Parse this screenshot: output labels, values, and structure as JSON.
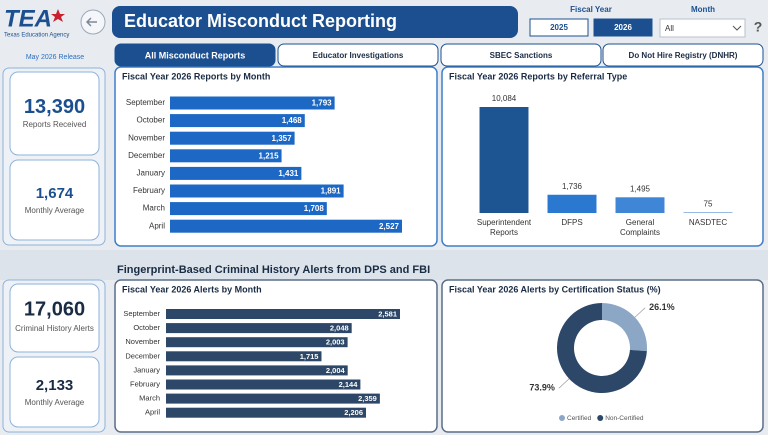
{
  "header": {
    "logo": "TEA",
    "agency": "Texas Education Agency",
    "title": "Educator Misconduct Reporting",
    "fiscal_year_label": "Fiscal Year",
    "fiscal_years": [
      "2025",
      "2026"
    ],
    "selected_year_index": 1,
    "month_label": "Month",
    "month_value": "All",
    "help": "?"
  },
  "release": "May 2026 Release",
  "tabs": [
    "All Misconduct Reports",
    "Educator Investigations",
    "SBEC Sanctions",
    "Do Not Hire Registry (DNHR)"
  ],
  "active_tab": 0,
  "kpis": [
    {
      "value": "13,390",
      "label": "Reports Received"
    },
    {
      "value": "1,674",
      "label": "Monthly Average"
    },
    {
      "value": "17,060",
      "label": "Criminal History Alerts"
    },
    {
      "value": "2,133",
      "label": "Monthly Average"
    }
  ],
  "section_title": "Fingerprint-Based Criminal History Alerts from DPS and FBI",
  "chart_data": [
    {
      "type": "hbar",
      "title": "Fiscal Year 2026 Reports by Month",
      "categories": [
        "September",
        "October",
        "November",
        "December",
        "January",
        "February",
        "March",
        "April"
      ],
      "values": [
        1793,
        1468,
        1357,
        1215,
        1431,
        1891,
        1708,
        2527
      ],
      "value_labels": [
        "1,793",
        "1,468",
        "1,357",
        "1,215",
        "1,431",
        "1,891",
        "1,708",
        "2,527"
      ],
      "color": "#1c68c4"
    },
    {
      "type": "bar",
      "title": "Fiscal Year 2026 Reports by Referral Type",
      "categories": [
        "Superintendent Reports",
        "DFPS",
        "General Complaints",
        "NASDTEC"
      ],
      "values": [
        10084,
        1736,
        1495,
        75
      ],
      "value_labels": [
        "10,084",
        "1,736",
        "1,495",
        "75"
      ],
      "colors": [
        "#1d5593",
        "#2a78d0",
        "#3f86d6",
        "#7aa8dc"
      ]
    },
    {
      "type": "hbar",
      "title": "Fiscal Year 2026 Alerts by Month",
      "categories": [
        "September",
        "October",
        "November",
        "December",
        "January",
        "February",
        "March",
        "April"
      ],
      "values": [
        2581,
        2048,
        2003,
        1715,
        2004,
        2144,
        2359,
        2206
      ],
      "value_labels": [
        "2,581",
        "2,048",
        "2,003",
        "1,715",
        "2,004",
        "2,144",
        "2,359",
        "2,206"
      ],
      "color": "#2c4767"
    },
    {
      "type": "donut",
      "title": "Fiscal Year 2026 Alerts by Certification Status (%)",
      "categories": [
        "Certified",
        "Non-Certified"
      ],
      "values": [
        26.1,
        73.9
      ],
      "value_labels": [
        "26.1%",
        "73.9%"
      ],
      "colors": [
        "#8ca7c6",
        "#2c4767"
      ],
      "legend": "bottom"
    }
  ]
}
